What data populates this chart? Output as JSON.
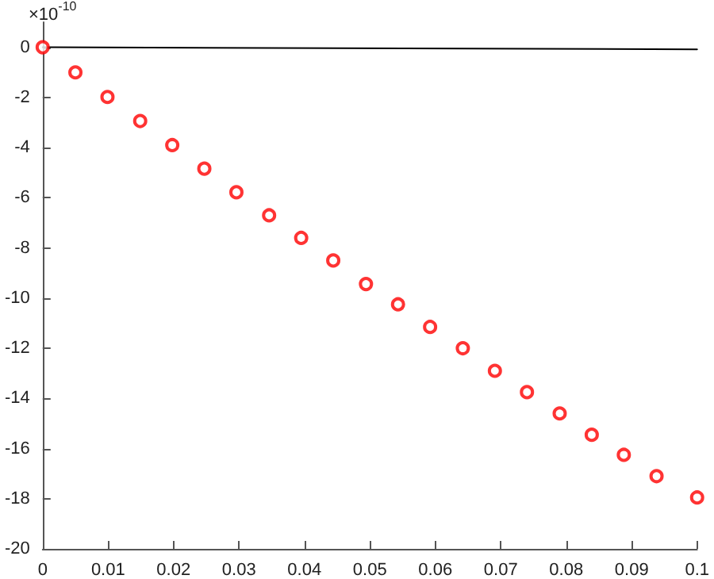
{
  "chart_data": {
    "type": "scatter",
    "annotations": [
      "×10$^{-10}$"
    ],
    "xlim": [
      0,
      0.1
    ],
    "xticks": [
      0,
      0.01,
      0.02,
      0.03,
      0.04,
      0.05,
      0.06,
      0.07,
      0.08,
      0.09,
      0.1
    ],
    "ylim": [
      -20,
      1
    ],
    "yticks": [
      -20,
      -18,
      -16,
      -14,
      -12,
      -10,
      -8,
      -6,
      -4,
      -2,
      0
    ],
    "grid": false,
    "marker": "circle",
    "series": [
      {
        "type": "line",
        "marker": "none",
        "color": "#000000",
        "x": [
          0,
          0.1
        ],
        "values": [
          0,
          -0.08
        ]
      },
      {
        "color": "#ff0000",
        "x": [
          0,
          0.005,
          0.0099,
          0.0149,
          0.0198,
          0.0247,
          0.0296,
          0.0346,
          0.0395,
          0.0444,
          0.0494,
          0.0543,
          0.0592,
          0.0642,
          0.0691,
          0.074,
          0.079,
          0.0839,
          0.0888,
          0.0938,
          0.1
        ],
        "values": [
          0,
          -1.0,
          -1.98,
          -2.94,
          -3.9,
          -4.84,
          -5.78,
          -6.7,
          -7.6,
          -8.5,
          -9.44,
          -10.25,
          -11.15,
          -12.0,
          -12.9,
          -13.75,
          -14.6,
          -15.45,
          -16.25,
          -17.1,
          -17.95
        ]
      }
    ]
  }
}
